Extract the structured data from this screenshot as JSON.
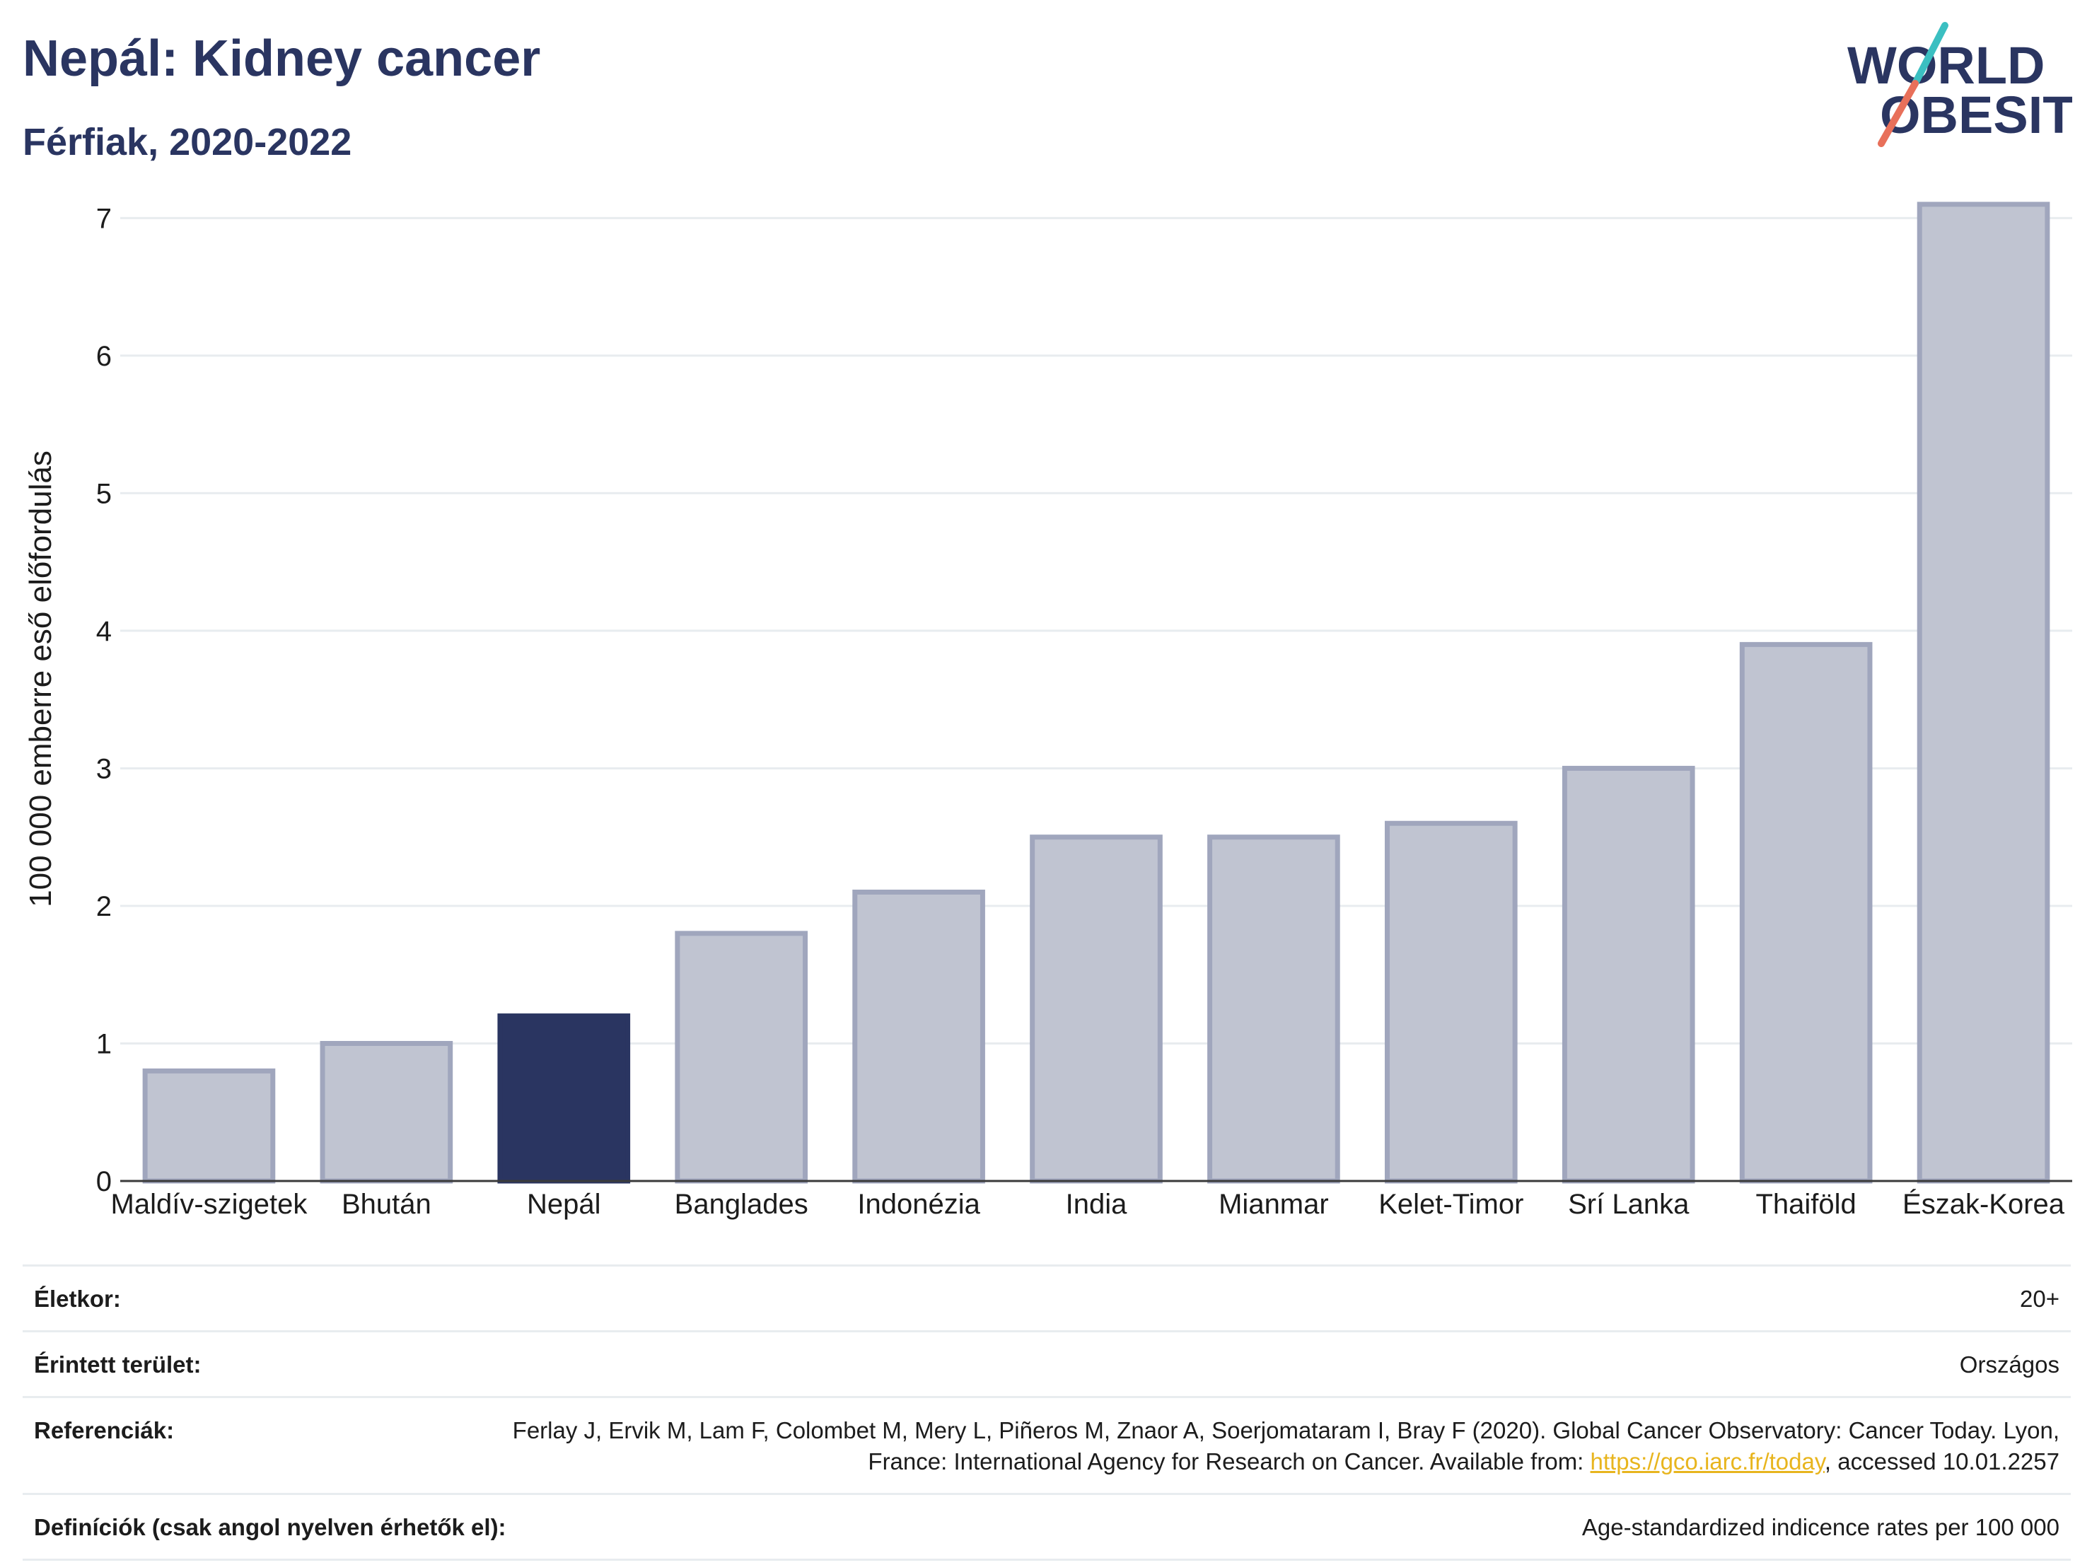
{
  "title": "Nepál: Kidney cancer",
  "subtitle": "Férfiak, 2020-2022",
  "logo": {
    "line1": "WORLD",
    "line2": "OBESITY",
    "colors": [
      "#2a3561",
      "#3bbfc1",
      "#e8705a"
    ]
  },
  "colors": {
    "highlight": "#2a3561",
    "bar": "#c0c4d1",
    "bar_border": "#a0a6bd",
    "grid": "#e8ecef"
  },
  "chart_data": {
    "type": "bar",
    "categories": [
      "Maldív-szigetek",
      "Bhután",
      "Nepál",
      "Banglades",
      "Indonézia",
      "India",
      "Mianmar",
      "Kelet-Timor",
      "Srí Lanka",
      "Thaiföld",
      "Észak-Korea"
    ],
    "values": [
      0.8,
      1.0,
      1.2,
      1.8,
      2.1,
      2.5,
      2.5,
      2.6,
      3.0,
      3.9,
      7.1
    ],
    "highlight": "Nepál",
    "ylabel": "100 000 emberre eső előfordulás",
    "xlabel": "",
    "ylim": [
      0,
      7.3
    ],
    "yticks": [
      0,
      1,
      2,
      3,
      4,
      5,
      6,
      7
    ],
    "grid": true
  },
  "info": [
    {
      "key": "Életkor:",
      "value": "20+"
    },
    {
      "key": "Érintett terület:",
      "value": "Országos"
    },
    {
      "key": "Referenciák:",
      "value_pre": "Ferlay J, Ervik M, Lam F, Colombet M, Mery L, Piñeros M, Znaor A, Soerjomataram I, Bray F (2020). Global Cancer Observatory: Cancer Today. Lyon, France: International Agency for Research on Cancer. Available from: ",
      "link": "https://gco.iarc.fr/today",
      "value_post": ", accessed 10.01.2257"
    },
    {
      "key": "Definíciók (csak angol nyelven érhetők el):",
      "value": "Age-standardized indicence rates per 100 000"
    }
  ]
}
